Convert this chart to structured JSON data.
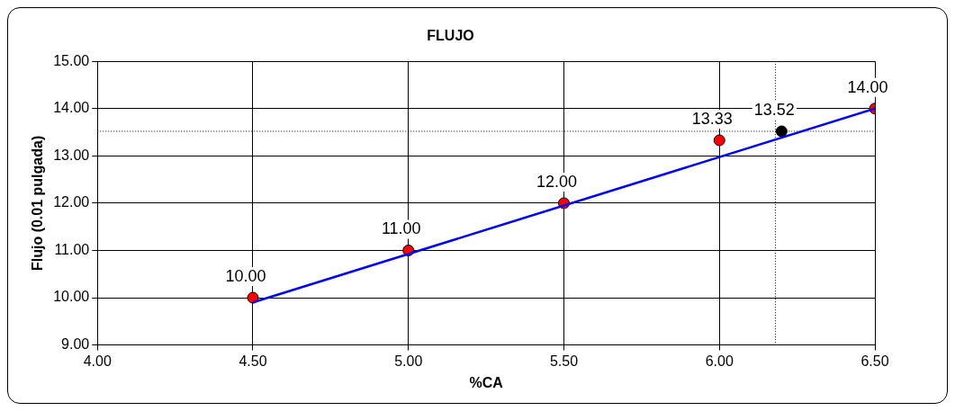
{
  "chart_data": {
    "type": "scatter",
    "title": "FLUJO",
    "xlabel": "%CA",
    "ylabel": "Flujo (0.01 pulgada)",
    "xlim": [
      4,
      6.5
    ],
    "xticks": [
      {
        "value": 4,
        "label": "4.00"
      },
      {
        "value": 4.5,
        "label": "4.50"
      },
      {
        "value": 5,
        "label": "5.00"
      },
      {
        "value": 5.5,
        "label": "5.50"
      },
      {
        "value": 6,
        "label": "6.00"
      },
      {
        "value": 6.5,
        "label": "6.50"
      }
    ],
    "ylim": [
      9,
      15
    ],
    "yticks": [
      {
        "value": 9,
        "label": "9.00"
      },
      {
        "value": 10,
        "label": "10.00"
      },
      {
        "value": 11,
        "label": "11.00"
      },
      {
        "value": 12,
        "label": "12.00"
      },
      {
        "value": 13,
        "label": "13.00"
      },
      {
        "value": 14,
        "label": "14.00"
      },
      {
        "value": 15,
        "label": "15.00"
      }
    ],
    "grid": true,
    "legend": false,
    "marker": "circle",
    "series": [
      {
        "type": "line",
        "color": "#0000ff",
        "x": [
          4.5,
          6.5
        ],
        "values": [
          9.9,
          14.0
        ],
        "marker": "none"
      },
      {
        "type": "scatter",
        "color": "#ff0000",
        "x": [
          4.5,
          5,
          5.5,
          6,
          6.5
        ],
        "values": [
          10,
          11,
          12,
          13.33,
          14
        ],
        "value_labels": [
          "10.00",
          "11.00",
          "12.00",
          "13.33",
          "14.00"
        ]
      },
      {
        "type": "scatter",
        "color": "#000000",
        "x": [
          6.2
        ],
        "values": [
          13.52
        ],
        "value_labels": [
          "13.52"
        ]
      }
    ],
    "ref_lines": [
      {
        "axis": "y",
        "value": 13.52,
        "line_style": "dotted",
        "color": "#000000"
      },
      {
        "axis": "x",
        "value": 6.18,
        "line_style": "dotted",
        "color": "#000000"
      }
    ]
  }
}
